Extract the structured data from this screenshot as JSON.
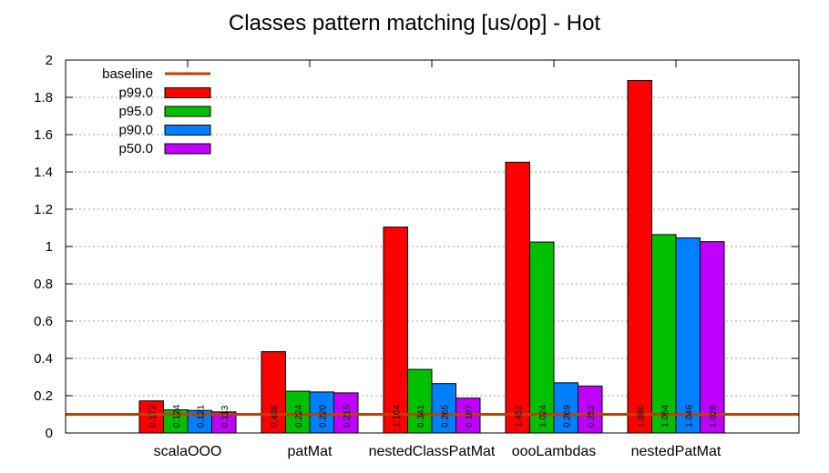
{
  "chart_data": {
    "type": "bar",
    "title": "Classes pattern matching [us/op] - Hot",
    "xlabel": "",
    "ylabel": "",
    "ylim": [
      0,
      2
    ],
    "yticks": [
      "0",
      "0.2",
      "0.4",
      "0.6",
      "0.8",
      "1",
      "1.2",
      "1.4",
      "1.6",
      "1.8",
      "2"
    ],
    "grid": "horizontal dotted",
    "legend_position": "top-left",
    "categories": [
      "scalaOOO",
      "patMat",
      "nestedClassPatMat",
      "oooLambdas",
      "nestedPatMat"
    ],
    "series": [
      {
        "name": "p99.0",
        "color": "#ff0000",
        "values": [
          0.172,
          0.436,
          1.104,
          1.452,
          1.89
        ],
        "labels": [
          "0.172",
          "0.436",
          "1.104",
          "1.452",
          "1.890"
        ]
      },
      {
        "name": "p95.0",
        "color": "#00c000",
        "values": [
          0.124,
          0.224,
          0.341,
          1.024,
          1.064
        ],
        "labels": [
          "0.124",
          "0.224",
          "0.341",
          "1.024",
          "1.064"
        ]
      },
      {
        "name": "p90.0",
        "color": "#0080ff",
        "values": [
          0.121,
          0.22,
          0.265,
          0.269,
          1.046
        ],
        "labels": [
          "0.121",
          "0.220",
          "0.265",
          "0.269",
          "1.046"
        ]
      },
      {
        "name": "p50.0",
        "color": "#c000ff",
        "values": [
          0.113,
          0.215,
          0.187,
          0.252,
          1.026
        ],
        "labels": [
          "0.113",
          "0.215",
          "0.187",
          "0.252",
          "1.026"
        ]
      }
    ],
    "baseline": {
      "name": "baseline",
      "value": 0.1,
      "color": "#c04000"
    }
  }
}
